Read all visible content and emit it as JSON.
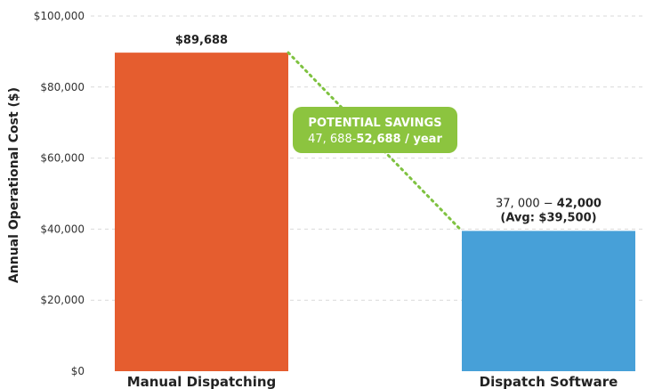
{
  "chart_data": {
    "type": "bar",
    "ylabel": "Annual Operational Cost ($)",
    "ylim": [
      0,
      100000
    ],
    "yticks": [
      0,
      20000,
      40000,
      60000,
      80000,
      100000
    ],
    "ytick_labels": [
      "$0",
      "$20,000",
      "$40,000",
      "$60,000",
      "$80,000",
      "$100,000"
    ],
    "grid": true,
    "categories": [
      "Manual Dispatching",
      "Dispatch Software"
    ],
    "values": [
      89688,
      39500
    ],
    "bar_colors": [
      "#e55d2f",
      "#47a0d8"
    ],
    "data_labels": [
      {
        "line1_normal": "",
        "line1_bold": "$89,688",
        "line2": ""
      },
      {
        "line1_normal": "37, 000 − ",
        "line1_bold": "42,000",
        "line2": "(Avg: $39,500)"
      }
    ],
    "annotation": {
      "title": "POTENTIAL SAVINGS",
      "value_normal": "47, 688-",
      "value_bold": "52,688 / year",
      "color": "#8cc43f",
      "connector_color": "#7fc241"
    }
  }
}
